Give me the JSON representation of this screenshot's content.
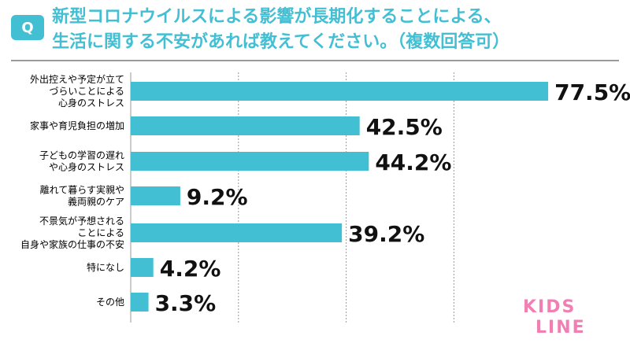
{
  "colors": {
    "accent": "#42bfd3",
    "grid": "#9a9a9a",
    "title": "#42bfd3",
    "logo_pink": "#f27fb3"
  },
  "badge": {
    "label": "Q"
  },
  "question": {
    "line1": "新型コロナウイルスによる影響が長期化することによる、",
    "line2": "生活に関する不安があれば教えてください。（複数回答可）"
  },
  "logo": {
    "line1": "KIDS",
    "line2": "LINE"
  },
  "chart_data": {
    "type": "bar",
    "orientation": "horizontal",
    "categories": [
      [
        "外出控えや予定が立て",
        "づらいことによる",
        "心身のストレス"
      ],
      [
        "家事や育児負担の増加"
      ],
      [
        "子どもの学習の遅れ",
        "や心身のストレス"
      ],
      [
        "離れて暮らす実親や",
        "義両親のケア"
      ],
      [
        "不景気が予想される",
        "ことによる",
        "自身や家族の仕事の不安"
      ],
      [
        "特になし"
      ],
      [
        "その他"
      ]
    ],
    "values": [
      77.5,
      42.5,
      44.2,
      9.2,
      39.2,
      4.2,
      3.3
    ],
    "value_labels": [
      "77.5%",
      "42.5%",
      "44.2%",
      "9.2%",
      "39.2%",
      "4.2%",
      "3.3%"
    ],
    "xlim": [
      0,
      80
    ],
    "grid": true,
    "grid_values": [
      20,
      40,
      60
    ],
    "bar_color": "#42bfd3"
  }
}
